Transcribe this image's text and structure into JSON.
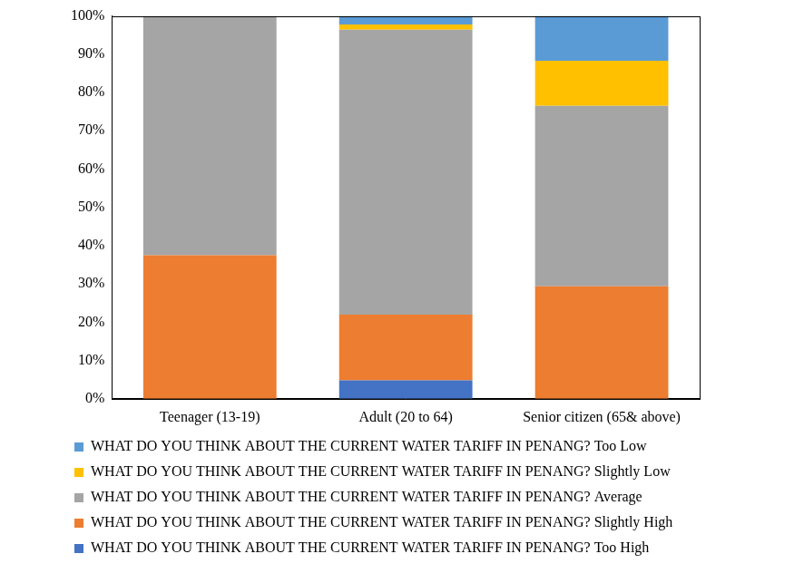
{
  "chart_data": {
    "type": "bar",
    "stacked": true,
    "grid": false,
    "legend": "bottom",
    "categories": [
      "Teenager (13-19)",
      "Adult (20 to 64)",
      "Senior citizen (65& above)"
    ],
    "series": [
      {
        "name": "WHAT DO YOU THINK ABOUT THE CURRENT WATER TARIFF IN PENANG? Too High",
        "color": "#4472C4",
        "values": [
          0,
          4.8,
          0
        ]
      },
      {
        "name": "WHAT DO YOU THINK ABOUT THE CURRENT WATER TARIFF IN PENANG? Slightly High",
        "color": "#ED7D31",
        "values": [
          37.5,
          17.2,
          29.4
        ]
      },
      {
        "name": "WHAT DO YOU THINK ABOUT THE CURRENT WATER TARIFF IN PENANG? Average",
        "color": "#A5A5A5",
        "values": [
          62.5,
          74.4,
          47.1
        ]
      },
      {
        "name": "WHAT DO YOU THINK ABOUT THE CURRENT WATER TARIFF IN PENANG? Slightly Low",
        "color": "#FFC000",
        "values": [
          0,
          1.4,
          11.8
        ]
      },
      {
        "name": "WHAT DO YOU THINK ABOUT THE CURRENT WATER TARIFF IN PENANG? Too Low",
        "color": "#5B9BD5",
        "values": [
          0,
          2.2,
          11.7
        ]
      }
    ],
    "ylim": [
      0,
      100
    ],
    "yticks": [
      {
        "value": 0,
        "label": "0%"
      },
      {
        "value": 10,
        "label": "10%"
      },
      {
        "value": 20,
        "label": "20%"
      },
      {
        "value": 30,
        "label": "30%"
      },
      {
        "value": 40,
        "label": "40%"
      },
      {
        "value": 50,
        "label": "50%"
      },
      {
        "value": 60,
        "label": "60%"
      },
      {
        "value": 70,
        "label": "70%"
      },
      {
        "value": 80,
        "label": "80%"
      },
      {
        "value": 90,
        "label": "90%"
      },
      {
        "value": 100,
        "label": "100%"
      }
    ]
  }
}
